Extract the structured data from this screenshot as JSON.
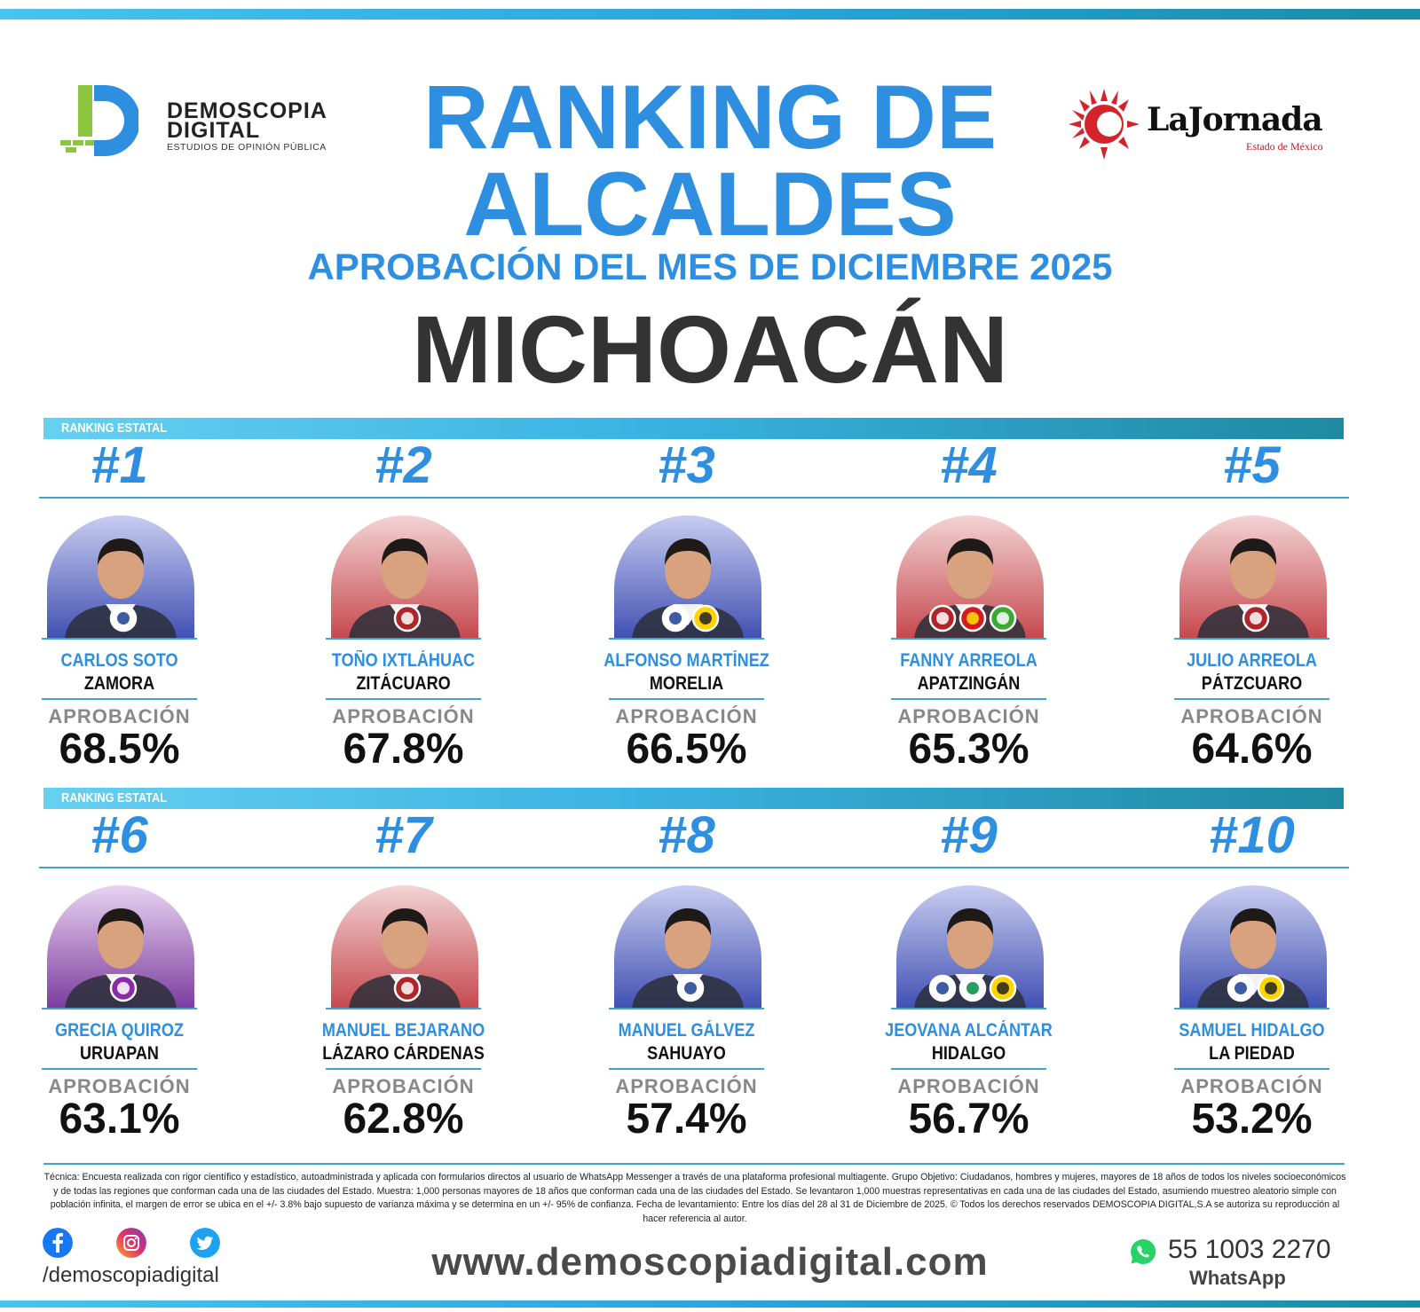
{
  "brand_left": {
    "name_line1": "DEMOSCOPIA",
    "name_line2": "DIGITAL",
    "tagline": "ESTUDIOS DE OPINIÓN PÚBLICA"
  },
  "brand_right": {
    "name": "LaJornada",
    "sub": "Estado de México"
  },
  "title": {
    "line1": "RANKING DE",
    "line2": "ALCALDES",
    "subtitle": "APROBACIÓN DEL MES DE DICIEMBRE 2025",
    "state": "MICHOACÁN"
  },
  "section_label": "RANKING ESTATAL",
  "approval_label": "APROBACIÓN",
  "colors": {
    "accent_blue": "#2e8fe0",
    "teal": "#1e8aa2",
    "dark": "#333333",
    "pan_bg": "#5a5fb6",
    "morena_bg": "#c8585c"
  },
  "mayors": [
    {
      "rank": "#1",
      "name": "CARLOS SOTO",
      "city": "ZAMORA",
      "approval": "68.5%",
      "approval_value": 68.5,
      "bg": "pan",
      "parties": [
        "PAN"
      ]
    },
    {
      "rank": "#2",
      "name": "TOÑO IXTLÁHUAC",
      "city": "ZITÁCUARO",
      "approval": "67.8%",
      "approval_value": 67.8,
      "bg": "morena",
      "parties": [
        "morena"
      ]
    },
    {
      "rank": "#3",
      "name": "ALFONSO MARTÍNEZ",
      "city": "MORELIA",
      "approval": "66.5%",
      "approval_value": 66.5,
      "bg": "pan",
      "parties": [
        "PAN",
        "PRD"
      ]
    },
    {
      "rank": "#4",
      "name": "FANNY ARREOLA",
      "city": "APATZINGÁN",
      "approval": "65.3%",
      "approval_value": 65.3,
      "bg": "morena",
      "parties": [
        "morena",
        "PT",
        "VERDE"
      ]
    },
    {
      "rank": "#5",
      "name": "JULIO ARREOLA",
      "city": "PÁTZCUARO",
      "approval": "64.6%",
      "approval_value": 64.6,
      "bg": "morena",
      "parties": [
        "morena"
      ]
    },
    {
      "rank": "#6",
      "name": "GRECIA QUIROZ",
      "city": "URUAPAN",
      "approval": "63.1%",
      "approval_value": 63.1,
      "bg": "purple",
      "parties": [
        "independiente"
      ]
    },
    {
      "rank": "#7",
      "name": "MANUEL BEJARANO",
      "city": "LÁZARO CÁRDENAS",
      "approval": "62.8%",
      "approval_value": 62.8,
      "bg": "morena",
      "parties": [
        "morena"
      ]
    },
    {
      "rank": "#8",
      "name": "MANUEL GÁLVEZ",
      "city": "SAHUAYO",
      "approval": "57.4%",
      "approval_value": 57.4,
      "bg": "pan",
      "parties": [
        "PAN"
      ]
    },
    {
      "rank": "#9",
      "name": "JEOVANA ALCÁNTAR",
      "city": "HIDALGO",
      "approval": "56.7%",
      "approval_value": 56.7,
      "bg": "pan",
      "parties": [
        "PAN",
        "PRI",
        "PRD"
      ]
    },
    {
      "rank": "#10",
      "name": "SAMUEL HIDALGO",
      "city": "LA PIEDAD",
      "approval": "53.2%",
      "approval_value": 53.2,
      "bg": "pan",
      "parties": [
        "PAN",
        "PRD"
      ]
    }
  ],
  "disclaimer": "Técnica: Encuesta realizada con rigor científico y estadístico, autoadministrada y aplicada con formularios directos al usuario de WhatsApp Messenger a través de una plataforma profesional multiagente. Grupo Objetivo: Ciudadanos, hombres y mujeres, mayores de 18 años de todos los niveles socioeconómicos y de todas las regiones que conforman cada una de las ciudades del Estado. Muestra: 1,000 personas mayores de 18 años que conforman cada una de las ciudades del Estado. Se levantaron 1,000 muestras representativas en cada una de las ciudades del Estado, asumiendo muestreo aleatorio simple con población infinita, el margen de error se ubica en el +/- 3.8% bajo supuesto de varianza máxima y se determina en un +/- 95% de confianza. Fecha de levantamiento: Entre los días del 28 al 31 de Diciembre de 2025. © Todos los derechos reservados DEMOSCOPIA DIGITAL,S.A se autoriza su reproducción al hacer referencia al autor.",
  "footer": {
    "social_icons": [
      "facebook-icon",
      "instagram-icon",
      "twitter-icon"
    ],
    "handle": "/demoscopiadigital",
    "website": "www.demoscopiadigital.com",
    "phone": "55 1003 2270",
    "whatsapp_label": "WhatsApp"
  }
}
